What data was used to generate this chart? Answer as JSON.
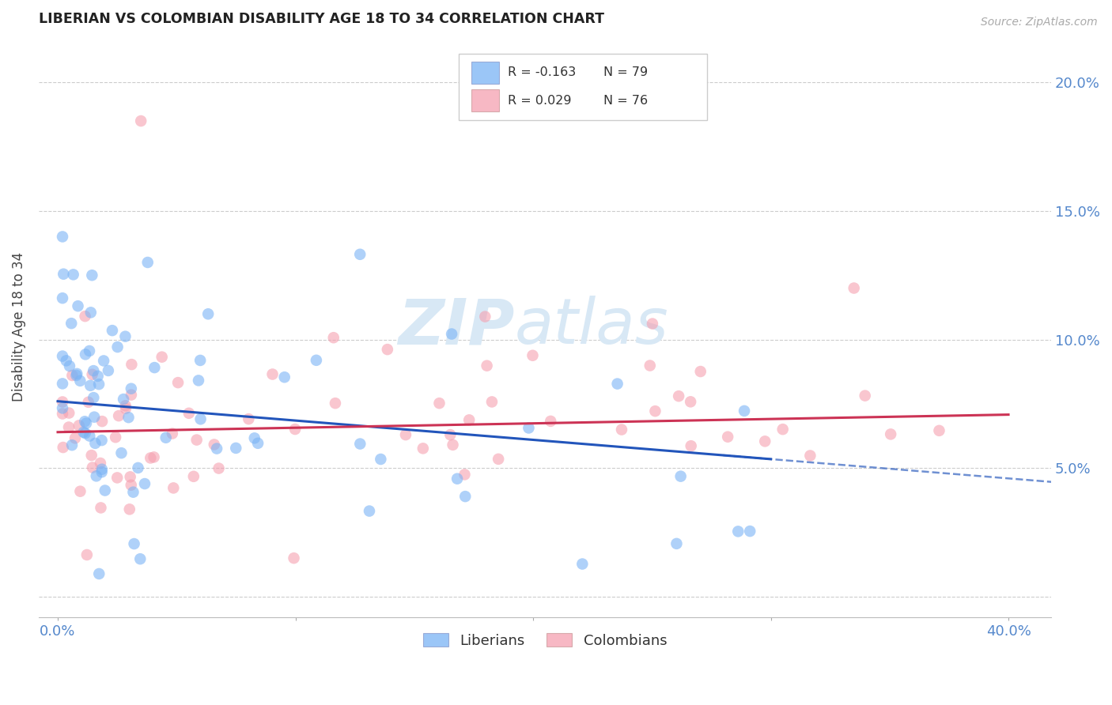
{
  "title": "LIBERIAN VS COLOMBIAN DISABILITY AGE 18 TO 34 CORRELATION CHART",
  "source_text": "Source: ZipAtlas.com",
  "ylabel": "Disability Age 18 to 34",
  "liberian_R": -0.163,
  "liberian_N": 79,
  "colombian_R": 0.029,
  "colombian_N": 76,
  "liberian_color": "#7ab3f5",
  "colombian_color": "#f5a0b0",
  "liberian_line_color": "#2255bb",
  "colombian_line_color": "#cc3355",
  "watermark_zip": "ZIP",
  "watermark_atlas": "atlas",
  "watermark_color": "#d8e8f5",
  "background_color": "#ffffff",
  "grid_color": "#cccccc",
  "axis_label_color": "#5588cc",
  "title_color": "#222222",
  "source_color": "#aaaaaa",
  "legend_box_color": "#eeeeee",
  "legend_border_color": "#cccccc"
}
